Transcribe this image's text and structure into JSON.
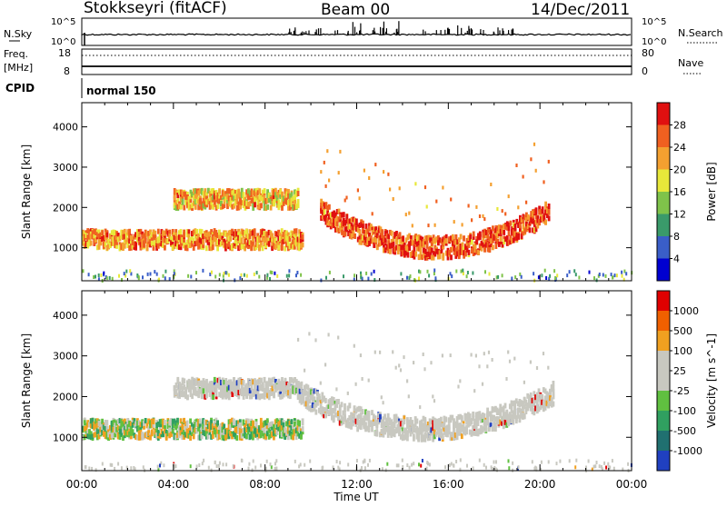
{
  "header": {
    "station": "Stokkseyri (fitACF)",
    "beam": "Beam 00",
    "date": "14/Dec/2011"
  },
  "noise_panel": {
    "left_label": "N.Sky",
    "left_ticks": [
      "10^5",
      "10^0"
    ],
    "right_label": "N.Search",
    "right_ticks": [
      "10^5",
      "10^0"
    ]
  },
  "freq_panel": {
    "left_label_line1": "Freq.",
    "left_label_line2": "[MHz]",
    "left_ticks": [
      "18",
      "8"
    ],
    "right_label": "Nave",
    "right_ticks": [
      "80",
      "0"
    ]
  },
  "cpid_panel": {
    "label": "CPID",
    "value": "normal 150"
  },
  "x_axis": {
    "label": "Time UT",
    "ticks": [
      "00:00",
      "04:00",
      "08:00",
      "12:00",
      "16:00",
      "20:00",
      "00:00"
    ]
  },
  "chart_data": [
    {
      "type": "heatmap",
      "title": "Power",
      "x_range_hours": [
        0,
        24
      ],
      "y_range_km": [
        180,
        4600
      ],
      "ylabel": "Slant Range [km]",
      "yticks": [
        "4000",
        "3000",
        "2000",
        "1000"
      ],
      "colorbar": {
        "label": "Power [dB]",
        "ticks": [
          "28",
          "24",
          "20",
          "16",
          "12",
          "8",
          "4"
        ],
        "range": [
          0,
          32
        ],
        "colors": [
          "#0000d0",
          "#3a5ec8",
          "#3a9a6a",
          "#7fc34a",
          "#e8e83a",
          "#f4a030",
          "#f06020",
          "#e01010"
        ]
      },
      "features": [
        {
          "name": "lower band",
          "time_start": 0.0,
          "time_end": 9.6,
          "range_center_km": 1200,
          "power_db": 24
        },
        {
          "name": "upper band",
          "time_start": 4.0,
          "time_end": 9.4,
          "range_center_km": 2200,
          "power_db": 22
        },
        {
          "name": "arc",
          "time_start": 10.4,
          "time_end": 20.4,
          "range_center_km": 1000,
          "power_db": 28
        }
      ]
    },
    {
      "type": "heatmap",
      "title": "Velocity",
      "x_range_hours": [
        0,
        24
      ],
      "y_range_km": [
        180,
        4600
      ],
      "ylabel": "Slant Range [km]",
      "yticks": [
        "4000",
        "3000",
        "2000",
        "1000"
      ],
      "colorbar": {
        "label": "Velocity [m s^-1]",
        "ticks": [
          "1000",
          "500",
          "100",
          "25",
          "-25",
          "-100",
          "-500",
          "-1000"
        ],
        "range": [
          -1200,
          1200
        ],
        "colors": [
          "#e00000",
          "#f06000",
          "#f0a020",
          "#c8c8c0",
          "#c8c8c0",
          "#60c040",
          "#30a060",
          "#207070",
          "#2040c0"
        ]
      },
      "features": [
        {
          "name": "lower band",
          "time_start": 0.0,
          "time_end": 9.6,
          "range_center_km": 1200,
          "velocity_ms": -100
        },
        {
          "name": "upper band",
          "time_start": 4.0,
          "time_end": 9.4,
          "range_center_km": 2200,
          "velocity_ms": 0
        },
        {
          "name": "arc",
          "time_start": 9.4,
          "time_end": 20.6,
          "range_center_km": 1200,
          "velocity_ms": 0
        }
      ]
    }
  ]
}
